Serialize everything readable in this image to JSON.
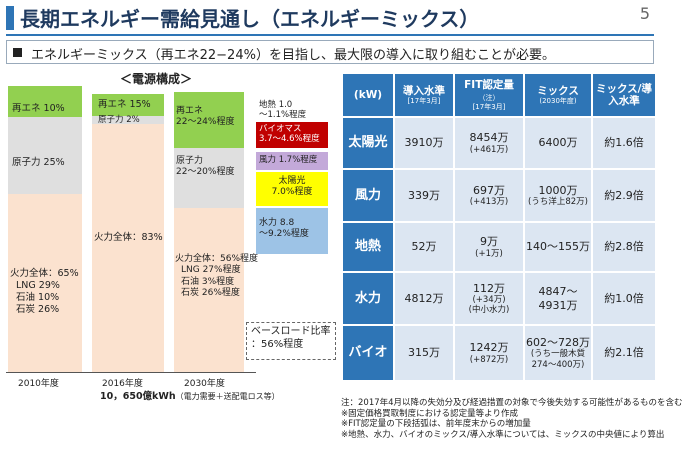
{
  "header": {
    "title": "長期エネルギー需給見通し（エネルギーミックス）",
    "page_number": "5"
  },
  "subtitle": "エネルギーミックス（再エネ22−24%）を目指し、最大限の導入に取り組むことが必要。",
  "power_mix_chart": {
    "title": "＜電源構成＞",
    "bar_2010": {
      "renewable": "再エネ 10%",
      "nuclear": "原子力 25%",
      "fossil": [
        "火力全体：65%",
        "LNG 29%",
        "石油 10%",
        "石炭 26%"
      ]
    },
    "bar_2016": {
      "renewable": "再エネ 15%",
      "nuclear": "原子力 2%",
      "fossil": "火力全体：83%"
    },
    "bar_2030": {
      "renewable": [
        "再エネ",
        "22～24%程度"
      ],
      "nuclear": [
        "原子力",
        "22～20%程度"
      ],
      "fossil": [
        "火力全体：56%程度",
        "LNG 27%程度",
        "石油 3%程度",
        "石炭 26%程度"
      ]
    },
    "renewable_breakdown": {
      "geothermal": [
        "地熱 1.0",
        "～1.1%程度"
      ],
      "biomass": [
        "バイオマス",
        "3.7～4.6%程度"
      ],
      "wind": "風力 1.7%程度",
      "solar": [
        "太陽光",
        "7.0%程度"
      ],
      "hydro": [
        "水力 8.8",
        "～9.2%程度"
      ]
    },
    "baseload_note": [
      "ベースロード比率",
      "：56%程度"
    ],
    "years": [
      "2010年度",
      "2016年度",
      "2030年度"
    ],
    "total_demand": "10，650億kWh",
    "total_demand_note": "（電力需要＋送配電ロス等）"
  },
  "table": {
    "headers": {
      "unit": "(kW)",
      "introduced": "導入水準",
      "introduced_sub": "[17年3月]",
      "fit": "FIT認定量",
      "fit_note": "（注）",
      "fit_sub": "[17年3月]",
      "mix": "ミックス",
      "mix_sub": "(2030年度)",
      "ratio": "ミックス/導入水準"
    },
    "rows": [
      {
        "category": "太陽光",
        "introduced": "3910万",
        "fit": "8454万",
        "fit_sub": "(+461万)",
        "mix": "6400万",
        "mix_sub": "",
        "ratio": "約1.6倍"
      },
      {
        "category": "風力",
        "introduced": "339万",
        "fit": "697万",
        "fit_sub": "(+413万)",
        "mix": "1000万",
        "mix_sub": "(うち洋上82万)",
        "ratio": "約2.9倍"
      },
      {
        "category": "地熱",
        "introduced": "52万",
        "fit": "9万",
        "fit_sub": "(+1万)",
        "mix": "140～155万",
        "mix_sub": "",
        "ratio": "約2.8倍"
      },
      {
        "category": "水力",
        "introduced": "4812万",
        "fit": "112万",
        "fit_sub": "(+34万)",
        "fit_sub2": "(中小水力)",
        "mix": "4847～4931万",
        "mix_sub": "",
        "ratio": "約1.0倍"
      },
      {
        "category": "バイオ",
        "introduced": "315万",
        "fit": "1242万",
        "fit_sub": "(+872万)",
        "mix": "602～728万",
        "mix_sub": "(うち一般木質274～400万)",
        "ratio": "約2.1倍"
      }
    ]
  },
  "notes": [
    "注：2017年4月以降の失効分及び経過措置の対象で今後失効する可能性があるものを含む",
    "※固定価格買取制度における認定量等より作成",
    "※FIT認定量の下段括弧は、前年度末からの増加量",
    "※地熱、水力、バイオのミックス/導入水準については、ミックスの中央値により算出"
  ],
  "colors": {
    "accent": "#2e75b6",
    "fossil": "#fbe2cf",
    "nuclear": "#dfdfdf",
    "renewable": "#92d050",
    "biomass": "#c00000",
    "wind": "#c3a9d9",
    "solar": "#ffff00",
    "hydro": "#9dc3e6",
    "table_cell": "#dce6f2"
  }
}
